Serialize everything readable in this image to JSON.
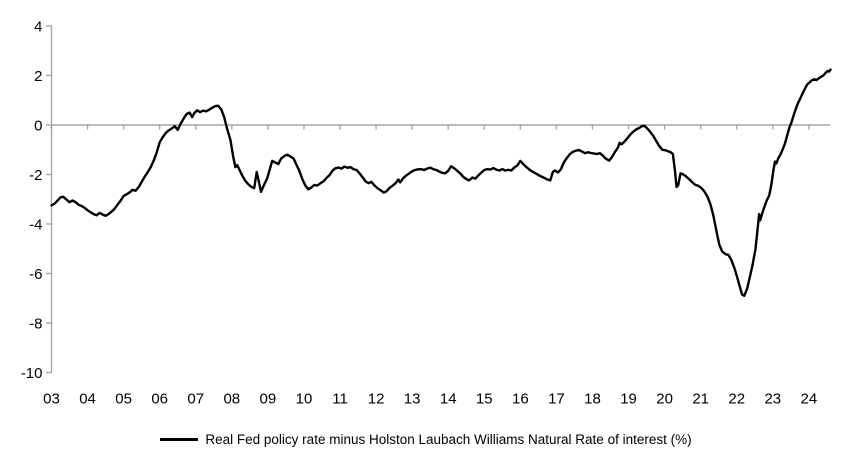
{
  "chart_data": {
    "type": "line",
    "title": "",
    "xlabel": "",
    "ylabel": "",
    "xlim": [
      2003,
      2024.6
    ],
    "ylim": [
      -10,
      4
    ],
    "grid": false,
    "legend_position": "bottom",
    "axis_color": "#a6a6a6",
    "label_color": "#000000",
    "zero_axis_line": true,
    "y_ticks": [
      4,
      2,
      0,
      -2,
      -4,
      -6,
      -8,
      -10
    ],
    "x_tick_years": [
      2003,
      2004,
      2005,
      2006,
      2007,
      2008,
      2009,
      2010,
      2011,
      2012,
      2013,
      2014,
      2015,
      2016,
      2017,
      2018,
      2019,
      2020,
      2021,
      2022,
      2023,
      2024
    ],
    "x_tick_labels": [
      "03",
      "04",
      "05",
      "06",
      "07",
      "08",
      "09",
      "10",
      "11",
      "12",
      "13",
      "14",
      "15",
      "16",
      "17",
      "18",
      "19",
      "20",
      "21",
      "22",
      "23",
      "24"
    ],
    "series": [
      {
        "name": "Real Fed policy rate minus Holston Laubach Williams Natural Rate of interest (%)",
        "color": "#000000",
        "width": 2.4,
        "points": [
          [
            2003.0,
            -3.25
          ],
          [
            2003.08,
            -3.18
          ],
          [
            2003.17,
            -3.05
          ],
          [
            2003.25,
            -2.92
          ],
          [
            2003.33,
            -2.9
          ],
          [
            2003.42,
            -3.02
          ],
          [
            2003.5,
            -3.12
          ],
          [
            2003.58,
            -3.05
          ],
          [
            2003.67,
            -3.12
          ],
          [
            2003.75,
            -3.22
          ],
          [
            2003.83,
            -3.27
          ],
          [
            2003.92,
            -3.35
          ],
          [
            2004.0,
            -3.45
          ],
          [
            2004.08,
            -3.52
          ],
          [
            2004.17,
            -3.6
          ],
          [
            2004.25,
            -3.65
          ],
          [
            2004.33,
            -3.55
          ],
          [
            2004.42,
            -3.62
          ],
          [
            2004.5,
            -3.67
          ],
          [
            2004.58,
            -3.6
          ],
          [
            2004.67,
            -3.5
          ],
          [
            2004.75,
            -3.38
          ],
          [
            2004.83,
            -3.22
          ],
          [
            2004.92,
            -3.05
          ],
          [
            2005.0,
            -2.87
          ],
          [
            2005.08,
            -2.8
          ],
          [
            2005.17,
            -2.72
          ],
          [
            2005.25,
            -2.62
          ],
          [
            2005.33,
            -2.66
          ],
          [
            2005.42,
            -2.5
          ],
          [
            2005.5,
            -2.3
          ],
          [
            2005.58,
            -2.1
          ],
          [
            2005.67,
            -1.9
          ],
          [
            2005.75,
            -1.7
          ],
          [
            2005.83,
            -1.45
          ],
          [
            2005.92,
            -1.1
          ],
          [
            2006.0,
            -0.7
          ],
          [
            2006.08,
            -0.5
          ],
          [
            2006.17,
            -0.32
          ],
          [
            2006.25,
            -0.22
          ],
          [
            2006.33,
            -0.15
          ],
          [
            2006.42,
            -0.05
          ],
          [
            2006.5,
            -0.2
          ],
          [
            2006.58,
            0.05
          ],
          [
            2006.67,
            0.28
          ],
          [
            2006.75,
            0.45
          ],
          [
            2006.83,
            0.5
          ],
          [
            2006.9,
            0.32
          ],
          [
            2006.96,
            0.48
          ],
          [
            2007.04,
            0.6
          ],
          [
            2007.12,
            0.52
          ],
          [
            2007.21,
            0.58
          ],
          [
            2007.29,
            0.55
          ],
          [
            2007.37,
            0.62
          ],
          [
            2007.46,
            0.7
          ],
          [
            2007.54,
            0.76
          ],
          [
            2007.62,
            0.78
          ],
          [
            2007.71,
            0.62
          ],
          [
            2007.79,
            0.3
          ],
          [
            2007.87,
            -0.15
          ],
          [
            2007.96,
            -0.6
          ],
          [
            2008.04,
            -1.3
          ],
          [
            2008.1,
            -1.7
          ],
          [
            2008.15,
            -1.62
          ],
          [
            2008.21,
            -1.8
          ],
          [
            2008.29,
            -2.05
          ],
          [
            2008.37,
            -2.25
          ],
          [
            2008.46,
            -2.4
          ],
          [
            2008.54,
            -2.5
          ],
          [
            2008.62,
            -2.55
          ],
          [
            2008.69,
            -1.9
          ],
          [
            2008.75,
            -2.3
          ],
          [
            2008.81,
            -2.7
          ],
          [
            2008.9,
            -2.4
          ],
          [
            2008.98,
            -2.15
          ],
          [
            2009.06,
            -1.75
          ],
          [
            2009.12,
            -1.45
          ],
          [
            2009.21,
            -1.52
          ],
          [
            2009.29,
            -1.58
          ],
          [
            2009.37,
            -1.35
          ],
          [
            2009.46,
            -1.25
          ],
          [
            2009.54,
            -1.2
          ],
          [
            2009.62,
            -1.27
          ],
          [
            2009.71,
            -1.35
          ],
          [
            2009.79,
            -1.6
          ],
          [
            2009.87,
            -1.85
          ],
          [
            2009.96,
            -2.2
          ],
          [
            2010.04,
            -2.45
          ],
          [
            2010.12,
            -2.6
          ],
          [
            2010.21,
            -2.52
          ],
          [
            2010.29,
            -2.42
          ],
          [
            2010.37,
            -2.45
          ],
          [
            2010.46,
            -2.35
          ],
          [
            2010.54,
            -2.28
          ],
          [
            2010.62,
            -2.15
          ],
          [
            2010.71,
            -2.02
          ],
          [
            2010.79,
            -1.85
          ],
          [
            2010.87,
            -1.75
          ],
          [
            2010.96,
            -1.72
          ],
          [
            2011.04,
            -1.76
          ],
          [
            2011.12,
            -1.68
          ],
          [
            2011.21,
            -1.73
          ],
          [
            2011.29,
            -1.7
          ],
          [
            2011.37,
            -1.78
          ],
          [
            2011.46,
            -1.82
          ],
          [
            2011.54,
            -1.95
          ],
          [
            2011.62,
            -2.1
          ],
          [
            2011.71,
            -2.28
          ],
          [
            2011.79,
            -2.35
          ],
          [
            2011.87,
            -2.3
          ],
          [
            2011.96,
            -2.45
          ],
          [
            2012.04,
            -2.55
          ],
          [
            2012.12,
            -2.63
          ],
          [
            2012.21,
            -2.73
          ],
          [
            2012.29,
            -2.68
          ],
          [
            2012.37,
            -2.55
          ],
          [
            2012.46,
            -2.45
          ],
          [
            2012.54,
            -2.35
          ],
          [
            2012.62,
            -2.2
          ],
          [
            2012.67,
            -2.32
          ],
          [
            2012.75,
            -2.15
          ],
          [
            2012.83,
            -2.05
          ],
          [
            2012.92,
            -1.95
          ],
          [
            2013.0,
            -1.87
          ],
          [
            2013.08,
            -1.82
          ],
          [
            2013.17,
            -1.79
          ],
          [
            2013.25,
            -1.78
          ],
          [
            2013.33,
            -1.82
          ],
          [
            2013.42,
            -1.76
          ],
          [
            2013.5,
            -1.72
          ],
          [
            2013.58,
            -1.78
          ],
          [
            2013.67,
            -1.82
          ],
          [
            2013.75,
            -1.88
          ],
          [
            2013.83,
            -1.93
          ],
          [
            2013.92,
            -1.95
          ],
          [
            2014.0,
            -1.85
          ],
          [
            2014.08,
            -1.67
          ],
          [
            2014.17,
            -1.75
          ],
          [
            2014.25,
            -1.85
          ],
          [
            2014.33,
            -1.95
          ],
          [
            2014.42,
            -2.1
          ],
          [
            2014.5,
            -2.18
          ],
          [
            2014.58,
            -2.24
          ],
          [
            2014.67,
            -2.12
          ],
          [
            2014.75,
            -2.17
          ],
          [
            2014.83,
            -2.05
          ],
          [
            2014.92,
            -1.92
          ],
          [
            2015.0,
            -1.82
          ],
          [
            2015.08,
            -1.78
          ],
          [
            2015.17,
            -1.8
          ],
          [
            2015.25,
            -1.74
          ],
          [
            2015.33,
            -1.8
          ],
          [
            2015.42,
            -1.84
          ],
          [
            2015.5,
            -1.78
          ],
          [
            2015.58,
            -1.84
          ],
          [
            2015.67,
            -1.81
          ],
          [
            2015.75,
            -1.84
          ],
          [
            2015.83,
            -1.72
          ],
          [
            2015.92,
            -1.63
          ],
          [
            2016.0,
            -1.45
          ],
          [
            2016.08,
            -1.58
          ],
          [
            2016.17,
            -1.7
          ],
          [
            2016.25,
            -1.8
          ],
          [
            2016.33,
            -1.88
          ],
          [
            2016.42,
            -1.95
          ],
          [
            2016.5,
            -2.02
          ],
          [
            2016.58,
            -2.08
          ],
          [
            2016.67,
            -2.14
          ],
          [
            2016.75,
            -2.2
          ],
          [
            2016.83,
            -2.24
          ],
          [
            2016.9,
            -1.9
          ],
          [
            2016.96,
            -1.84
          ],
          [
            2017.04,
            -1.92
          ],
          [
            2017.12,
            -1.8
          ],
          [
            2017.21,
            -1.5
          ],
          [
            2017.29,
            -1.33
          ],
          [
            2017.37,
            -1.18
          ],
          [
            2017.46,
            -1.08
          ],
          [
            2017.54,
            -1.04
          ],
          [
            2017.62,
            -1.01
          ],
          [
            2017.71,
            -1.07
          ],
          [
            2017.79,
            -1.14
          ],
          [
            2017.87,
            -1.1
          ],
          [
            2017.96,
            -1.13
          ],
          [
            2018.04,
            -1.15
          ],
          [
            2018.12,
            -1.17
          ],
          [
            2018.21,
            -1.14
          ],
          [
            2018.29,
            -1.24
          ],
          [
            2018.37,
            -1.36
          ],
          [
            2018.46,
            -1.44
          ],
          [
            2018.54,
            -1.3
          ],
          [
            2018.62,
            -1.1
          ],
          [
            2018.71,
            -0.9
          ],
          [
            2018.75,
            -0.72
          ],
          [
            2018.81,
            -0.78
          ],
          [
            2018.87,
            -0.7
          ],
          [
            2018.96,
            -0.55
          ],
          [
            2019.04,
            -0.4
          ],
          [
            2019.12,
            -0.28
          ],
          [
            2019.21,
            -0.18
          ],
          [
            2019.29,
            -0.12
          ],
          [
            2019.37,
            -0.05
          ],
          [
            2019.44,
            -0.03
          ],
          [
            2019.52,
            -0.14
          ],
          [
            2019.6,
            -0.28
          ],
          [
            2019.69,
            -0.45
          ],
          [
            2019.77,
            -0.65
          ],
          [
            2019.85,
            -0.85
          ],
          [
            2019.94,
            -1.0
          ],
          [
            2020.02,
            -1.02
          ],
          [
            2020.1,
            -1.06
          ],
          [
            2020.17,
            -1.1
          ],
          [
            2020.23,
            -1.17
          ],
          [
            2020.29,
            -1.9
          ],
          [
            2020.33,
            -2.5
          ],
          [
            2020.38,
            -2.42
          ],
          [
            2020.44,
            -1.95
          ],
          [
            2020.52,
            -2.0
          ],
          [
            2020.6,
            -2.08
          ],
          [
            2020.69,
            -2.2
          ],
          [
            2020.77,
            -2.32
          ],
          [
            2020.85,
            -2.42
          ],
          [
            2020.94,
            -2.46
          ],
          [
            2021.02,
            -2.55
          ],
          [
            2021.1,
            -2.68
          ],
          [
            2021.19,
            -2.9
          ],
          [
            2021.27,
            -3.2
          ],
          [
            2021.35,
            -3.65
          ],
          [
            2021.44,
            -4.3
          ],
          [
            2021.52,
            -4.85
          ],
          [
            2021.6,
            -5.12
          ],
          [
            2021.69,
            -5.22
          ],
          [
            2021.77,
            -5.25
          ],
          [
            2021.85,
            -5.45
          ],
          [
            2021.94,
            -5.8
          ],
          [
            2022.02,
            -6.2
          ],
          [
            2022.08,
            -6.5
          ],
          [
            2022.15,
            -6.85
          ],
          [
            2022.21,
            -6.9
          ],
          [
            2022.29,
            -6.6
          ],
          [
            2022.37,
            -6.1
          ],
          [
            2022.44,
            -5.65
          ],
          [
            2022.52,
            -5.0
          ],
          [
            2022.58,
            -4.2
          ],
          [
            2022.62,
            -3.6
          ],
          [
            2022.65,
            -3.85
          ],
          [
            2022.71,
            -3.55
          ],
          [
            2022.77,
            -3.3
          ],
          [
            2022.83,
            -3.05
          ],
          [
            2022.9,
            -2.85
          ],
          [
            2022.96,
            -2.4
          ],
          [
            2023.02,
            -1.8
          ],
          [
            2023.06,
            -1.48
          ],
          [
            2023.1,
            -1.55
          ],
          [
            2023.15,
            -1.35
          ],
          [
            2023.21,
            -1.2
          ],
          [
            2023.27,
            -1.0
          ],
          [
            2023.33,
            -0.78
          ],
          [
            2023.4,
            -0.42
          ],
          [
            2023.46,
            -0.1
          ],
          [
            2023.52,
            0.12
          ],
          [
            2023.58,
            0.4
          ],
          [
            2023.65,
            0.7
          ],
          [
            2023.71,
            0.92
          ],
          [
            2023.77,
            1.1
          ],
          [
            2023.83,
            1.28
          ],
          [
            2023.9,
            1.5
          ],
          [
            2023.96,
            1.65
          ],
          [
            2024.02,
            1.72
          ],
          [
            2024.08,
            1.8
          ],
          [
            2024.15,
            1.85
          ],
          [
            2024.21,
            1.82
          ],
          [
            2024.27,
            1.88
          ],
          [
            2024.33,
            1.94
          ],
          [
            2024.4,
            2.0
          ],
          [
            2024.46,
            2.1
          ],
          [
            2024.52,
            2.18
          ],
          [
            2024.56,
            2.16
          ],
          [
            2024.6,
            2.24
          ]
        ]
      }
    ]
  },
  "legend": {
    "label": "Real Fed policy rate minus Holston Laubach Williams Natural Rate of interest (%)"
  }
}
